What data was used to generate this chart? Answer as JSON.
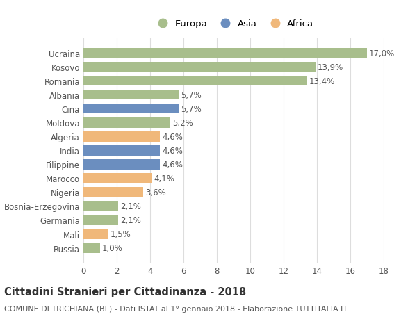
{
  "countries": [
    "Russia",
    "Mali",
    "Germania",
    "Bosnia-Erzegovina",
    "Nigeria",
    "Marocco",
    "Filippine",
    "India",
    "Algeria",
    "Moldova",
    "Cina",
    "Albania",
    "Romania",
    "Kosovo",
    "Ucraina"
  ],
  "values": [
    1.0,
    1.5,
    2.1,
    2.1,
    3.6,
    4.1,
    4.6,
    4.6,
    4.6,
    5.2,
    5.7,
    5.7,
    13.4,
    13.9,
    17.0
  ],
  "continents": [
    "Europa",
    "Africa",
    "Europa",
    "Europa",
    "Africa",
    "Africa",
    "Asia",
    "Asia",
    "Africa",
    "Europa",
    "Asia",
    "Europa",
    "Europa",
    "Europa",
    "Europa"
  ],
  "colors": {
    "Europa": "#a8be8c",
    "Asia": "#6b8ebf",
    "Africa": "#f0b87a"
  },
  "legend_order": [
    "Europa",
    "Asia",
    "Africa"
  ],
  "title": "Cittadini Stranieri per Cittadinanza - 2018",
  "subtitle": "COMUNE DI TRICHIANA (BL) - Dati ISTAT al 1° gennaio 2018 - Elaborazione TUTTITALIA.IT",
  "xlim": [
    0,
    18
  ],
  "xticks": [
    0,
    2,
    4,
    6,
    8,
    10,
    12,
    14,
    16,
    18
  ],
  "background_color": "#ffffff",
  "grid_color": "#dddddd",
  "bar_height": 0.72,
  "label_fontsize": 8.5,
  "title_fontsize": 10.5,
  "subtitle_fontsize": 8,
  "tick_fontsize": 8.5,
  "legend_fontsize": 9.5
}
